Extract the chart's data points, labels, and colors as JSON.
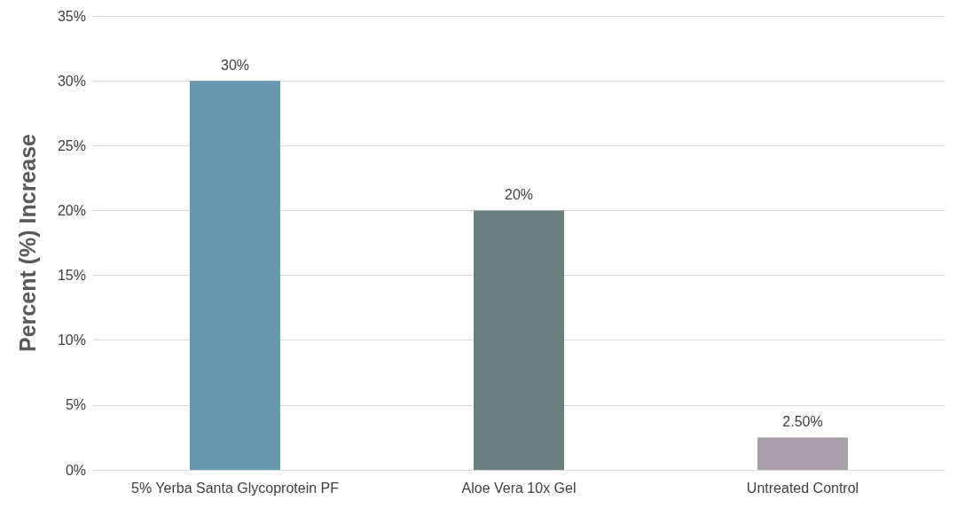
{
  "chart_data": {
    "type": "bar",
    "ylabel": "Percent (%) Increase",
    "categories": [
      "5% Yerba Santa Glycoprotein PF",
      "Aloe Vera 10x Gel",
      "Untreated Control"
    ],
    "values": [
      30,
      20,
      2.5
    ],
    "colors": [
      "#6897b0",
      "#6c7f80",
      "#a99fa8"
    ],
    "value_labels": [
      "30%",
      "20%",
      "2.50%"
    ],
    "ylim": [
      0,
      35
    ],
    "yticks": [
      {
        "value": 0,
        "label": "0%"
      },
      {
        "value": 5,
        "label": "5%"
      },
      {
        "value": 10,
        "label": "10%"
      },
      {
        "value": 15,
        "label": "15%"
      },
      {
        "value": 20,
        "label": "20%"
      },
      {
        "value": 25,
        "label": "25%"
      },
      {
        "value": 30,
        "label": "30%"
      },
      {
        "value": 35,
        "label": "35%"
      }
    ],
    "grid": "y"
  }
}
